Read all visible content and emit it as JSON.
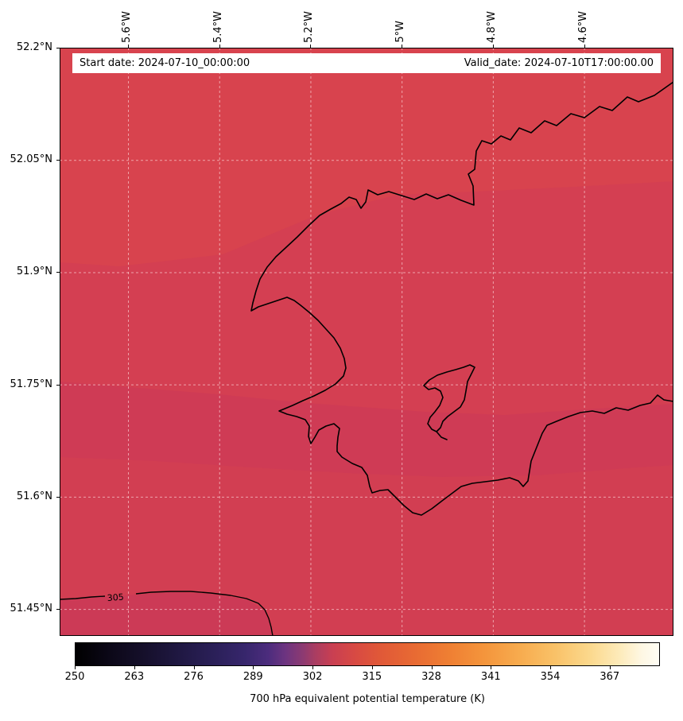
{
  "figure": {
    "title_bar": {
      "start_date_label": "Start date: 2024-07-10_00:00:00",
      "valid_date_label": "Valid_date: 2024-07-10T17:00:00.00"
    }
  },
  "chart_data": {
    "type": "heatmap",
    "description": "Filled-contour geographic map of 700 hPa equivalent potential temperature over a coastal region, field values around 303-309 K (crimson shades), with black coastlines, dashed graticule lines and a 305 K contour labelled in the lower left.",
    "x_axis": {
      "tick_labels": [
        "5.6°W",
        "5.4°W",
        "5.2°W",
        "5°W",
        "4.8°W",
        "4.6°W"
      ],
      "tick_values": [
        -5.6,
        -5.4,
        -5.2,
        -5.0,
        -4.8,
        -4.6
      ],
      "range": [
        -5.75,
        -4.404
      ]
    },
    "y_axis": {
      "tick_labels": [
        "52.2°N",
        "52.05°N",
        "51.9°N",
        "51.75°N",
        "51.6°N",
        "51.45°N"
      ],
      "tick_values": [
        52.2,
        52.05,
        51.9,
        51.75,
        51.6,
        51.45
      ],
      "range": [
        52.2,
        51.414
      ]
    },
    "colorbar": {
      "label": "700 hPa equivalent potential temperature (K)",
      "tick_values": [
        250,
        263,
        276,
        289,
        302,
        315,
        328,
        341,
        354,
        367
      ],
      "range": [
        250,
        378
      ],
      "colormap_stops": [
        [
          "0%",
          "#000000"
        ],
        [
          "6%",
          "#0c0818"
        ],
        [
          "12%",
          "#16102c"
        ],
        [
          "18%",
          "#201843"
        ],
        [
          "24%",
          "#2b2059"
        ],
        [
          "29%",
          "#37266c"
        ],
        [
          "33%",
          "#4c2c7d"
        ],
        [
          "36%",
          "#6d3480"
        ],
        [
          "39%",
          "#8d3a71"
        ],
        [
          "41%",
          "#a93d62"
        ],
        [
          "44%",
          "#c93f52"
        ],
        [
          "48%",
          "#d84a43"
        ],
        [
          "52%",
          "#e05838"
        ],
        [
          "58%",
          "#e86a33"
        ],
        [
          "64%",
          "#ef7f33"
        ],
        [
          "70%",
          "#f4953c"
        ],
        [
          "76%",
          "#f7ab4e"
        ],
        [
          "82%",
          "#f9c167"
        ],
        [
          "88%",
          "#fbd88c"
        ],
        [
          "93%",
          "#fdeab8"
        ],
        [
          "97%",
          "#fef7e3"
        ],
        [
          "100%",
          "#fffdf5"
        ]
      ]
    },
    "contour_label": "305",
    "field_summary": {
      "units": "K",
      "approx_range_on_map": [
        303,
        309
      ],
      "contour_shown": 305
    }
  },
  "map": {
    "fills": {
      "base": "#d8434e",
      "band_mid": "#d43f52",
      "band_dark": "#cf3b55",
      "band_lower": "#d23e52",
      "below_305": "#cc3a56"
    },
    "coastline": "#000000",
    "gridline": "rgba(255,230,230,0.6)"
  }
}
